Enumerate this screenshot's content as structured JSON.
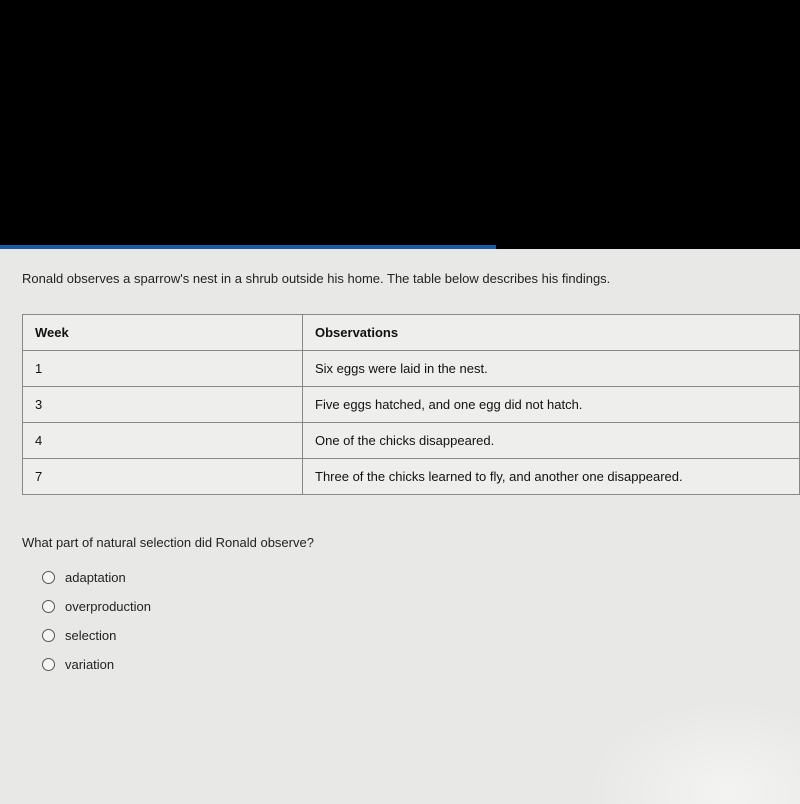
{
  "intro": "Ronald observes a sparrow's nest in a shrub outside his home. The table below describes his findings.",
  "table": {
    "headers": {
      "col1": "Week",
      "col2": "Observations"
    },
    "rows": [
      {
        "week": "1",
        "obs": "Six eggs were laid in the nest."
      },
      {
        "week": "3",
        "obs": "Five eggs hatched, and one egg did not hatch."
      },
      {
        "week": "4",
        "obs": "One of the chicks disappeared."
      },
      {
        "week": "7",
        "obs": "Three of the chicks learned to fly, and another one disappeared."
      }
    ]
  },
  "question": "What part of natural selection did Ronald observe?",
  "options": [
    {
      "label": "adaptation"
    },
    {
      "label": "overproduction"
    },
    {
      "label": "selection"
    },
    {
      "label": "variation"
    }
  ]
}
